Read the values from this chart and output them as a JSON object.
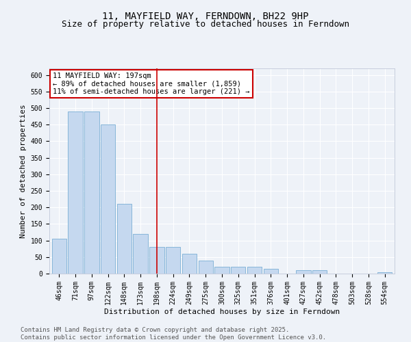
{
  "title_line1": "11, MAYFIELD WAY, FERNDOWN, BH22 9HP",
  "title_line2": "Size of property relative to detached houses in Ferndown",
  "xlabel": "Distribution of detached houses by size in Ferndown",
  "ylabel": "Number of detached properties",
  "categories": [
    "46sqm",
    "71sqm",
    "97sqm",
    "122sqm",
    "148sqm",
    "173sqm",
    "198sqm",
    "224sqm",
    "249sqm",
    "275sqm",
    "300sqm",
    "325sqm",
    "351sqm",
    "376sqm",
    "401sqm",
    "427sqm",
    "452sqm",
    "478sqm",
    "503sqm",
    "528sqm",
    "554sqm"
  ],
  "values": [
    105,
    490,
    490,
    450,
    210,
    120,
    80,
    80,
    60,
    40,
    20,
    20,
    20,
    15,
    0,
    10,
    10,
    0,
    0,
    0,
    5
  ],
  "bar_color": "#c5d8ef",
  "bar_edge_color": "#7aafd4",
  "highlight_x_label": "198sqm",
  "highlight_line_color": "#cc0000",
  "annotation_text": "11 MAYFIELD WAY: 197sqm\n← 89% of detached houses are smaller (1,859)\n11% of semi-detached houses are larger (221) →",
  "annotation_box_color": "#ffffff",
  "annotation_box_edge_color": "#cc0000",
  "ylim": [
    0,
    620
  ],
  "yticks": [
    0,
    50,
    100,
    150,
    200,
    250,
    300,
    350,
    400,
    450,
    500,
    550,
    600
  ],
  "footer_text": "Contains HM Land Registry data © Crown copyright and database right 2025.\nContains public sector information licensed under the Open Government Licence v3.0.",
  "background_color": "#eef2f8",
  "plot_background_color": "#eef2f8",
  "grid_color": "#ffffff",
  "title_fontsize": 10,
  "subtitle_fontsize": 9,
  "axis_label_fontsize": 8,
  "tick_fontsize": 7,
  "annotation_fontsize": 7.5,
  "footer_fontsize": 6.5
}
